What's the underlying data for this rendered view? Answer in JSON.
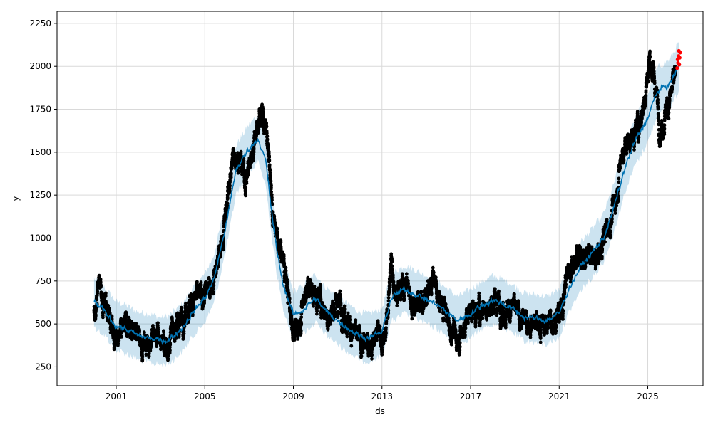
{
  "chart_data": {
    "type": "scatter",
    "xlabel": "ds",
    "ylabel": "y",
    "x_range": [
      "1998-05-01",
      "2027-07-01"
    ],
    "ylim": [
      140,
      2320
    ],
    "x_ticks": [
      {
        "date": "2001-01-01",
        "label": "2001"
      },
      {
        "date": "2005-01-01",
        "label": "2005"
      },
      {
        "date": "2009-01-01",
        "label": "2009"
      },
      {
        "date": "2013-01-01",
        "label": "2013"
      },
      {
        "date": "2017-01-01",
        "label": "2017"
      },
      {
        "date": "2021-01-01",
        "label": "2021"
      },
      {
        "date": "2025-01-01",
        "label": "2025"
      }
    ],
    "y_ticks": [
      250,
      500,
      750,
      1000,
      1250,
      1500,
      1750,
      2000,
      2250
    ],
    "grid": true,
    "colors": {
      "observed": "#000000",
      "forecast_line": "#0072B2",
      "uncertainty_band": "#0072B2",
      "recent": "#ff0000"
    },
    "series": [
      {
        "role": "observed",
        "points_per_day": 1,
        "noise": 45,
        "points": [
          [
            "2000-01-01",
            540
          ],
          [
            "2000-02-01",
            650
          ],
          [
            "2000-04-01",
            760
          ],
          [
            "2000-06-01",
            620
          ],
          [
            "2000-09-01",
            580
          ],
          [
            "2000-12-01",
            420
          ],
          [
            "2001-03-01",
            400
          ],
          [
            "2001-06-01",
            480
          ],
          [
            "2001-09-01",
            500
          ],
          [
            "2001-12-01",
            430
          ],
          [
            "2002-03-01",
            400
          ],
          [
            "2002-06-01",
            390
          ],
          [
            "2002-09-01",
            430
          ],
          [
            "2002-12-01",
            420
          ],
          [
            "2003-03-01",
            380
          ],
          [
            "2003-06-01",
            400
          ],
          [
            "2003-09-01",
            480
          ],
          [
            "2003-12-01",
            520
          ],
          [
            "2004-03-01",
            600
          ],
          [
            "2004-06-01",
            630
          ],
          [
            "2004-09-01",
            650
          ],
          [
            "2004-12-01",
            660
          ],
          [
            "2005-03-01",
            700
          ],
          [
            "2005-06-01",
            780
          ],
          [
            "2005-09-01",
            900
          ],
          [
            "2005-12-01",
            1100
          ],
          [
            "2006-02-01",
            1300
          ],
          [
            "2006-05-01",
            1500
          ],
          [
            "2006-08-01",
            1450
          ],
          [
            "2006-11-01",
            1350
          ],
          [
            "2007-02-01",
            1450
          ],
          [
            "2007-05-01",
            1650
          ],
          [
            "2007-08-01",
            1720
          ],
          [
            "2007-11-01",
            1600
          ],
          [
            "2008-02-01",
            1100
          ],
          [
            "2008-05-01",
            950
          ],
          [
            "2008-08-01",
            850
          ],
          [
            "2008-11-01",
            600
          ],
          [
            "2009-02-01",
            430
          ],
          [
            "2009-05-01",
            550
          ],
          [
            "2009-08-01",
            720
          ],
          [
            "2009-11-01",
            700
          ],
          [
            "2010-02-01",
            650
          ],
          [
            "2010-05-01",
            620
          ],
          [
            "2010-08-01",
            540
          ],
          [
            "2010-11-01",
            600
          ],
          [
            "2011-02-01",
            620
          ],
          [
            "2011-05-01",
            560
          ],
          [
            "2011-08-01",
            480
          ],
          [
            "2011-11-01",
            420
          ],
          [
            "2012-02-01",
            380
          ],
          [
            "2012-05-01",
            370
          ],
          [
            "2012-08-01",
            400
          ],
          [
            "2012-11-01",
            470
          ],
          [
            "2013-02-01",
            380
          ],
          [
            "2013-04-01",
            560
          ],
          [
            "2013-06-01",
            850
          ],
          [
            "2013-08-01",
            720
          ],
          [
            "2013-11-01",
            680
          ],
          [
            "2014-02-01",
            760
          ],
          [
            "2014-05-01",
            620
          ],
          [
            "2014-08-01",
            640
          ],
          [
            "2014-11-01",
            620
          ],
          [
            "2015-02-01",
            700
          ],
          [
            "2015-05-01",
            760
          ],
          [
            "2015-08-01",
            620
          ],
          [
            "2015-11-01",
            600
          ],
          [
            "2016-02-01",
            480
          ],
          [
            "2016-05-01",
            420
          ],
          [
            "2016-08-01",
            440
          ],
          [
            "2016-11-01",
            540
          ],
          [
            "2017-02-01",
            600
          ],
          [
            "2017-05-01",
            560
          ],
          [
            "2017-08-01",
            620
          ],
          [
            "2017-11-01",
            600
          ],
          [
            "2018-02-01",
            640
          ],
          [
            "2018-05-01",
            620
          ],
          [
            "2018-08-01",
            580
          ],
          [
            "2018-11-01",
            600
          ],
          [
            "2019-02-01",
            560
          ],
          [
            "2019-05-01",
            520
          ],
          [
            "2019-08-01",
            510
          ],
          [
            "2019-11-01",
            520
          ],
          [
            "2020-02-01",
            500
          ],
          [
            "2020-05-01",
            490
          ],
          [
            "2020-08-01",
            520
          ],
          [
            "2020-11-01",
            530
          ],
          [
            "2021-02-01",
            560
          ],
          [
            "2021-05-01",
            780
          ],
          [
            "2021-08-01",
            850
          ],
          [
            "2021-11-01",
            900
          ],
          [
            "2022-02-01",
            880
          ],
          [
            "2022-05-01",
            920
          ],
          [
            "2022-08-01",
            860
          ],
          [
            "2022-11-01",
            900
          ],
          [
            "2023-02-01",
            1050
          ],
          [
            "2023-05-01",
            1100
          ],
          [
            "2023-08-01",
            1250
          ],
          [
            "2023-11-01",
            1500
          ],
          [
            "2024-02-01",
            1550
          ],
          [
            "2024-05-01",
            1600
          ],
          [
            "2024-08-01",
            1650
          ],
          [
            "2024-11-01",
            1800
          ],
          [
            "2025-02-01",
            2050
          ],
          [
            "2025-05-01",
            1900
          ],
          [
            "2025-08-01",
            1620
          ],
          [
            "2025-11-01",
            1750
          ],
          [
            "2026-02-01",
            1850
          ],
          [
            "2026-04-01",
            1950
          ]
        ]
      },
      {
        "role": "forecast",
        "points": [
          [
            "2000-01-01",
            625
          ],
          [
            "2000-06-01",
            580
          ],
          [
            "2001-01-01",
            490
          ],
          [
            "2001-06-01",
            470
          ],
          [
            "2002-01-01",
            430
          ],
          [
            "2002-06-01",
            420
          ],
          [
            "2003-01-01",
            400
          ],
          [
            "2003-06-01",
            410
          ],
          [
            "2004-01-01",
            480
          ],
          [
            "2004-06-01",
            560
          ],
          [
            "2005-01-01",
            650
          ],
          [
            "2005-06-01",
            760
          ],
          [
            "2006-01-01",
            1100
          ],
          [
            "2006-06-01",
            1400
          ],
          [
            "2007-01-01",
            1520
          ],
          [
            "2007-06-01",
            1580
          ],
          [
            "2007-10-01",
            1450
          ],
          [
            "2008-03-01",
            1000
          ],
          [
            "2008-07-01",
            750
          ],
          [
            "2009-01-01",
            550
          ],
          [
            "2009-06-01",
            580
          ],
          [
            "2010-01-01",
            650
          ],
          [
            "2010-06-01",
            580
          ],
          [
            "2011-01-01",
            520
          ],
          [
            "2011-06-01",
            480
          ],
          [
            "2012-01-01",
            430
          ],
          [
            "2012-06-01",
            420
          ],
          [
            "2013-01-01",
            450
          ],
          [
            "2013-06-01",
            650
          ],
          [
            "2014-01-01",
            700
          ],
          [
            "2014-06-01",
            680
          ],
          [
            "2015-01-01",
            640
          ],
          [
            "2015-06-01",
            620
          ],
          [
            "2016-01-01",
            560
          ],
          [
            "2016-06-01",
            520
          ],
          [
            "2017-01-01",
            560
          ],
          [
            "2017-06-01",
            600
          ],
          [
            "2018-01-01",
            640
          ],
          [
            "2018-06-01",
            620
          ],
          [
            "2019-01-01",
            580
          ],
          [
            "2019-06-01",
            540
          ],
          [
            "2020-01-01",
            530
          ],
          [
            "2020-06-01",
            520
          ],
          [
            "2021-01-01",
            560
          ],
          [
            "2021-06-01",
            700
          ],
          [
            "2022-01-01",
            840
          ],
          [
            "2022-06-01",
            900
          ],
          [
            "2023-01-01",
            1000
          ],
          [
            "2023-06-01",
            1150
          ],
          [
            "2024-01-01",
            1420
          ],
          [
            "2024-06-01",
            1560
          ],
          [
            "2025-01-01",
            1700
          ],
          [
            "2025-06-01",
            1850
          ],
          [
            "2026-01-01",
            1900
          ],
          [
            "2026-06-01",
            2000
          ]
        ],
        "band_halfwidth": 140
      },
      {
        "role": "recent",
        "points": [
          [
            "2026-05-01",
            1990
          ],
          [
            "2026-05-08",
            2040
          ],
          [
            "2026-05-15",
            2020
          ],
          [
            "2026-05-22",
            2060
          ],
          [
            "2026-05-29",
            2090
          ],
          [
            "2026-06-05",
            2010
          ],
          [
            "2026-06-12",
            2050
          ],
          [
            "2026-06-19",
            2080
          ]
        ]
      }
    ]
  }
}
